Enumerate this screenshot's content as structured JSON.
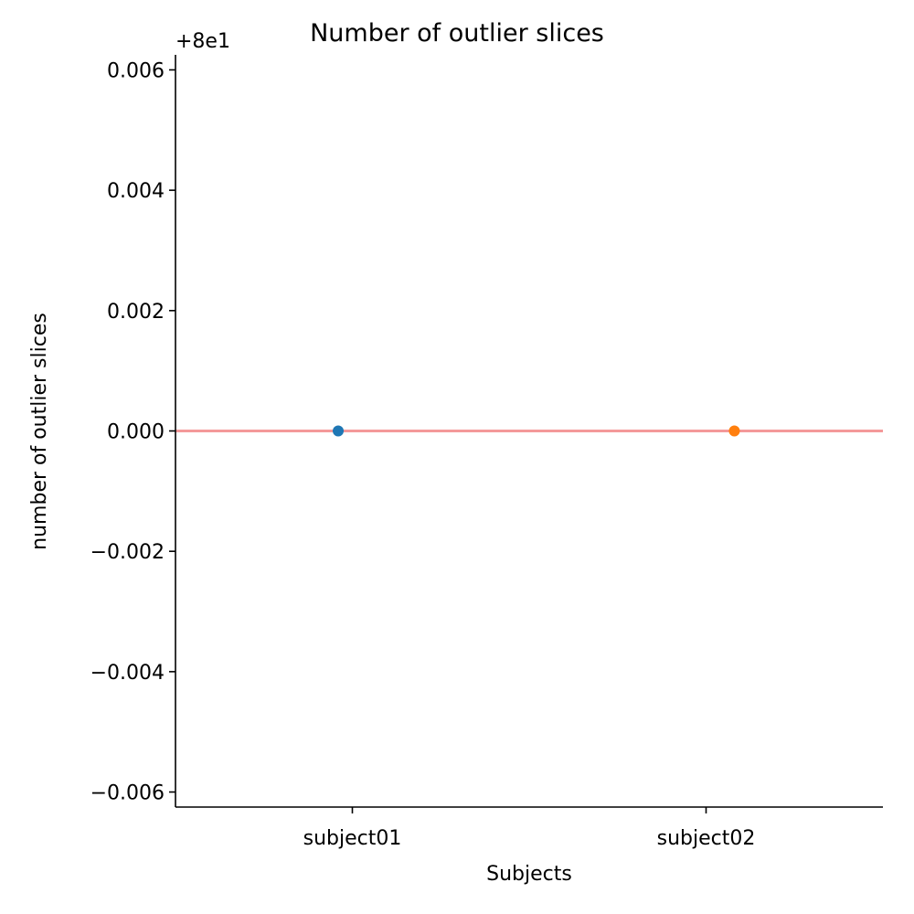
{
  "chart_data": {
    "type": "scatter",
    "title": "Number of outlier slices",
    "xlabel": "Subjects",
    "ylabel": "number of outlier slices",
    "axis_offset_label": "+8e1",
    "categories": [
      "subject01",
      "subject02"
    ],
    "points": [
      {
        "category": "subject01",
        "x_offset": -0.04,
        "value": 80,
        "color": "#1f77b4"
      },
      {
        "category": "subject02",
        "x_offset": 0.08,
        "value": 80,
        "color": "#ff7f0e"
      }
    ],
    "reference_line": {
      "value": 80,
      "color": "#f4999a"
    },
    "y_offset": 80,
    "ylim": [
      79.99375,
      80.00625
    ],
    "xlim": [
      -0.5,
      1.5
    ],
    "yticks": [
      {
        "value": -0.006,
        "label": "−0.006"
      },
      {
        "value": -0.004,
        "label": "−0.004"
      },
      {
        "value": -0.002,
        "label": "−0.002"
      },
      {
        "value": 0.0,
        "label": "0.000"
      },
      {
        "value": 0.002,
        "label": "0.002"
      },
      {
        "value": 0.004,
        "label": "0.004"
      },
      {
        "value": 0.006,
        "label": "0.006"
      }
    ],
    "grid": false,
    "legend": "none"
  }
}
